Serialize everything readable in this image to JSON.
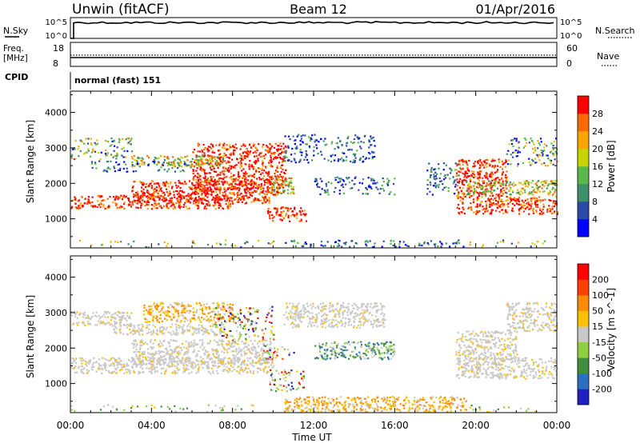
{
  "header": {
    "station": "Unwin (fitACF)",
    "beam": "Beam 12",
    "date": "01/Apr/2016"
  },
  "panel_labels": {
    "nsky": "N.Sky",
    "nsearch": "N.Search",
    "freq_line1": "Freq.",
    "freq_line2": "[MHz]",
    "nave": "Nave",
    "cpid": "CPID",
    "cpid_value": "normal (fast) 151"
  },
  "noise_axis": {
    "left_top": "10^5",
    "left_bottom": "10^0",
    "right_top": "10^5",
    "right_bottom": "10^0"
  },
  "freq_axis": {
    "left_top": "18",
    "left_bottom": "8",
    "right_top": "60",
    "right_bottom": "0"
  },
  "chart_data": [
    {
      "type": "heatmap",
      "parameter": "Power",
      "ylabel": "Slant Range [km]",
      "yticks": [
        1000,
        2000,
        3000,
        4000
      ],
      "ylim": [
        180,
        4600
      ],
      "xlim": [
        0,
        24
      ],
      "colorbar": {
        "label": "Power [dB]",
        "ticks": [
          4,
          8,
          12,
          16,
          20,
          24,
          28
        ],
        "colors": [
          "#0000ff",
          "#2a4aa8",
          "#3f8f6a",
          "#59b84a",
          "#c8d400",
          "#ffa500",
          "#ff6a00",
          "#ff0000"
        ]
      },
      "regions": [
        {
          "t0": 0.0,
          "t1": 8.0,
          "r0": 1300,
          "r1": 1680,
          "level": "high"
        },
        {
          "t0": 3.0,
          "t1": 9.8,
          "r0": 1450,
          "r1": 2100,
          "level": "high"
        },
        {
          "t0": 6.0,
          "t1": 10.6,
          "r0": 1700,
          "r1": 3150,
          "level": "high"
        },
        {
          "t0": 3.0,
          "t1": 7.5,
          "r0": 2500,
          "r1": 2800,
          "level": "mid"
        },
        {
          "t0": 0.0,
          "t1": 3.0,
          "r0": 2700,
          "r1": 3300,
          "level": "mixed"
        },
        {
          "t0": 1.0,
          "t1": 6.0,
          "r0": 2350,
          "r1": 2650,
          "level": "low"
        },
        {
          "t0": 9.7,
          "t1": 11.6,
          "r0": 950,
          "r1": 1350,
          "level": "high"
        },
        {
          "t0": 9.7,
          "t1": 11.0,
          "r0": 1700,
          "r1": 2200,
          "level": "mid"
        },
        {
          "t0": 10.5,
          "t1": 15.0,
          "r0": 2600,
          "r1": 3400,
          "level": "low"
        },
        {
          "t0": 12.0,
          "t1": 16.0,
          "r0": 1700,
          "r1": 2200,
          "level": "low"
        },
        {
          "t0": 17.5,
          "t1": 19.2,
          "r0": 1700,
          "r1": 2600,
          "level": "low"
        },
        {
          "t0": 19.0,
          "t1": 24.0,
          "r0": 1150,
          "r1": 1650,
          "level": "high"
        },
        {
          "t0": 19.0,
          "t1": 21.5,
          "r0": 1650,
          "r1": 2700,
          "level": "high"
        },
        {
          "t0": 19.5,
          "t1": 24.0,
          "r0": 1700,
          "r1": 2100,
          "level": "mid"
        },
        {
          "t0": 21.5,
          "t1": 24.0,
          "r0": 2500,
          "r1": 3300,
          "level": "mixed"
        },
        {
          "t0": 10.5,
          "t1": 19.5,
          "r0": 220,
          "r1": 420,
          "level": "low"
        },
        {
          "t0": 0.0,
          "t1": 10.0,
          "r0": 220,
          "r1": 420,
          "level": "sparse"
        },
        {
          "t0": 19.5,
          "t1": 24.0,
          "r0": 220,
          "r1": 420,
          "level": "sparse"
        }
      ]
    },
    {
      "type": "heatmap",
      "parameter": "Velocity",
      "ylabel": "Slant Range [km]",
      "yticks": [
        1000,
        2000,
        3000,
        4000
      ],
      "ylim": [
        180,
        4600
      ],
      "xlim": [
        0,
        24
      ],
      "xlabel": "Time UT",
      "xticks": [
        "00:00",
        "04:00",
        "08:00",
        "12:00",
        "16:00",
        "20:00",
        "00:00"
      ],
      "colorbar": {
        "label": "Velocity [m s^-1]",
        "ticks": [
          200,
          100,
          50,
          15,
          -15,
          -50,
          -100,
          -200
        ],
        "colors": [
          "#2020c0",
          "#2a70c0",
          "#3f8f3f",
          "#8fd040",
          "#c8c8c8",
          "#ffc000",
          "#ff8c00",
          "#ff4000",
          "#ff0000"
        ]
      },
      "regions": [
        {
          "t0": 0.0,
          "t1": 10.0,
          "r0": 1300,
          "r1": 1750,
          "level": "gray"
        },
        {
          "t0": 3.0,
          "t1": 10.0,
          "r0": 1550,
          "r1": 2250,
          "level": "gray"
        },
        {
          "t0": 0.0,
          "t1": 3.0,
          "r0": 2650,
          "r1": 3050,
          "level": "gray"
        },
        {
          "t0": 2.0,
          "t1": 7.5,
          "r0": 2400,
          "r1": 2700,
          "level": "gray"
        },
        {
          "t0": 3.5,
          "t1": 8.0,
          "r0": 2750,
          "r1": 3300,
          "level": "orange"
        },
        {
          "t0": 7.0,
          "t1": 10.0,
          "r0": 2200,
          "r1": 3200,
          "level": "mixed"
        },
        {
          "t0": 9.8,
          "t1": 11.5,
          "r0": 800,
          "r1": 1450,
          "level": "mixed"
        },
        {
          "t0": 9.5,
          "t1": 11.0,
          "r0": 1700,
          "r1": 2100,
          "level": "mixed"
        },
        {
          "t0": 10.5,
          "t1": 15.5,
          "r0": 2600,
          "r1": 3300,
          "level": "gray"
        },
        {
          "t0": 12.0,
          "t1": 16.0,
          "r0": 1700,
          "r1": 2200,
          "level": "green"
        },
        {
          "t0": 19.0,
          "t1": 24.0,
          "r0": 1150,
          "r1": 1750,
          "level": "gray"
        },
        {
          "t0": 19.0,
          "t1": 22.0,
          "r0": 1700,
          "r1": 2500,
          "level": "gray"
        },
        {
          "t0": 21.5,
          "t1": 24.0,
          "r0": 2500,
          "r1": 3300,
          "level": "gray"
        },
        {
          "t0": 10.5,
          "t1": 19.5,
          "r0": 220,
          "r1": 650,
          "level": "orange"
        },
        {
          "t0": 0.0,
          "t1": 10.0,
          "r0": 220,
          "r1": 420,
          "level": "sparse"
        },
        {
          "t0": 19.5,
          "t1": 24.0,
          "r0": 220,
          "r1": 420,
          "level": "sparse"
        }
      ]
    }
  ]
}
